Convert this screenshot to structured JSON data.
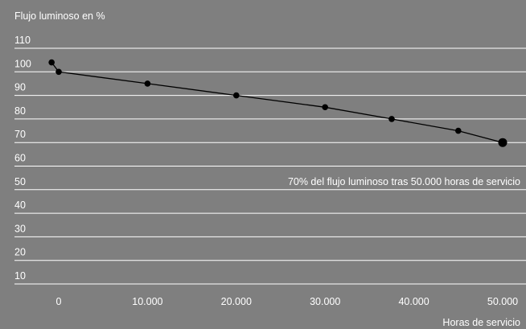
{
  "chart_data": {
    "type": "line",
    "title": "",
    "ylabel": "Flujo luminoso en %",
    "xlabel": "Horas de servicio",
    "xlim": [
      -3500,
      51500
    ],
    "ylim": [
      10,
      110
    ],
    "grid": true,
    "y_ticks": [
      {
        "value": 110,
        "label": "110"
      },
      {
        "value": 100,
        "label": "100"
      },
      {
        "value": 90,
        "label": "90"
      },
      {
        "value": 80,
        "label": "80"
      },
      {
        "value": 70,
        "label": "70"
      },
      {
        "value": 60,
        "label": "60"
      },
      {
        "value": 50,
        "label": "50"
      },
      {
        "value": 40,
        "label": "40"
      },
      {
        "value": 30,
        "label": "30"
      },
      {
        "value": 20,
        "label": "20"
      },
      {
        "value": 10,
        "label": "10"
      }
    ],
    "x_ticks": [
      {
        "value": 0,
        "label": "0"
      },
      {
        "value": 10000,
        "label": "10.000"
      },
      {
        "value": 20000,
        "label": "20.000"
      },
      {
        "value": 30000,
        "label": "30.000"
      },
      {
        "value": 40000,
        "label": "40.000"
      },
      {
        "value": 50000,
        "label": "50.000"
      }
    ],
    "series": [
      {
        "points": [
          {
            "x": -800,
            "y": 104
          },
          {
            "x": 0,
            "y": 100
          },
          {
            "x": 10000,
            "y": 95
          },
          {
            "x": 20000,
            "y": 90
          },
          {
            "x": 30000,
            "y": 85
          },
          {
            "x": 37500,
            "y": 80
          },
          {
            "x": 45000,
            "y": 75
          },
          {
            "x": 50000,
            "y": 70,
            "highlight": true
          }
        ]
      }
    ],
    "annotations": [
      {
        "text": "70% del flujo luminoso tras 50.000 horas de servicio",
        "x": 50000,
        "y": 50
      }
    ]
  }
}
